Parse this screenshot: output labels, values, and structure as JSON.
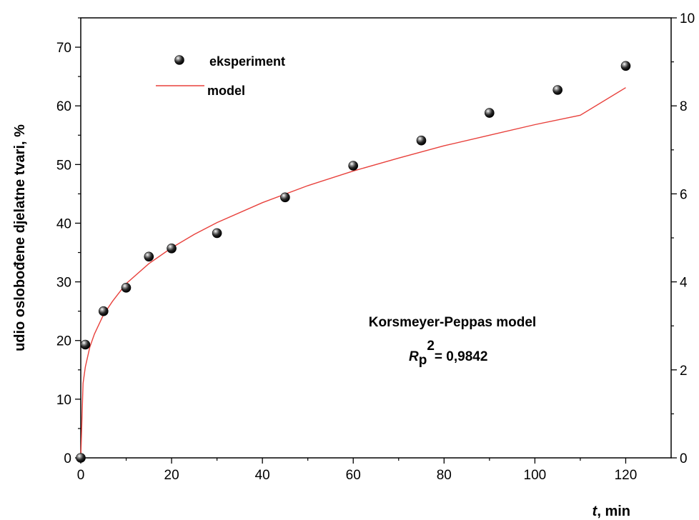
{
  "chart_data": {
    "type": "scatter",
    "xlabel_italic": "t",
    "xlabel_rest": ", min",
    "ylabel": "udio oslobođene djelatne tvari, %",
    "xlim": [
      0,
      130
    ],
    "ylim": [
      0,
      75
    ],
    "y2lim": [
      0,
      10
    ],
    "x_ticks": [
      0,
      20,
      40,
      60,
      80,
      100,
      120
    ],
    "y_ticks": [
      0,
      10,
      20,
      30,
      40,
      50,
      60,
      70
    ],
    "y2_ticks": [
      0,
      2,
      4,
      6,
      8,
      10
    ],
    "grid": false,
    "legend_position": "top-left",
    "series": [
      {
        "name": "eksperiment",
        "kind": "markers",
        "x": [
          0,
          1,
          5,
          10,
          15,
          20,
          30,
          45,
          60,
          75,
          90,
          105,
          120
        ],
        "y": [
          0,
          19.3,
          25,
          29,
          34.3,
          35.7,
          38.3,
          44.4,
          49.8,
          54.1,
          58.8,
          62.7,
          66.8
        ]
      },
      {
        "name": "model",
        "kind": "line",
        "color": "#e8413c",
        "x": [
          0,
          0.5,
          1,
          2,
          3,
          5,
          7,
          10,
          15,
          20,
          25,
          30,
          40,
          50,
          60,
          70,
          80,
          90,
          100,
          110,
          120
        ],
        "y": [
          0,
          12.7,
          15.5,
          18.9,
          21.1,
          24.4,
          26.7,
          29.7,
          33.1,
          35.8,
          38.1,
          40.1,
          43.5,
          46.4,
          48.9,
          51.1,
          53.2,
          55.0,
          56.8,
          58.4,
          63.1
        ]
      }
    ],
    "annotation": {
      "line1": "Korsmeyer-Peppas model",
      "r_symbol": "R",
      "r_sub": "p",
      "r_sup": "2",
      "r_value": "= 0,9842"
    }
  }
}
